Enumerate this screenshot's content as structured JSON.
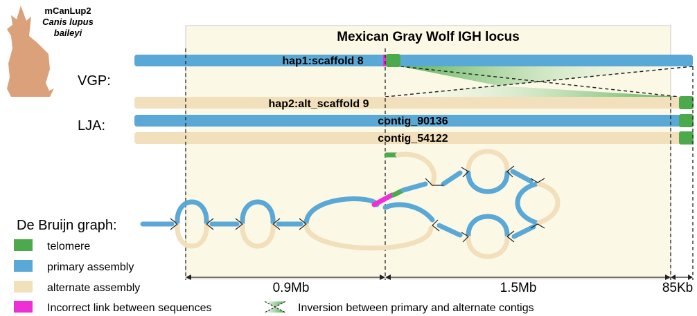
{
  "species": {
    "code": "mCanLup2",
    "genus_species": "Canis lupus",
    "subspecies": "baileyi"
  },
  "title": "Mexican Gray Wolf IGH locus",
  "tracks": {
    "vgp_label": "VGP:",
    "lja_label": "LJA:",
    "hap1": "hap1:scaffold 8",
    "hap2": "hap2:alt_scaffold 9",
    "contig1": "contig_90136",
    "contig2": "contig_54122"
  },
  "graph_label": "De Bruijn graph:",
  "scale": {
    "seg1": "0.9Mb",
    "seg2": "1.5Mb",
    "seg3": "85Kb"
  },
  "legend": {
    "telomere": "telomere",
    "primary": "primary assembly",
    "alternate": "alternate assembly",
    "incorrect": "Incorrect link between sequences",
    "inversion": "Inversion between primary and alternate contigs"
  },
  "colors": {
    "primary": "#5aa8d6",
    "alternate": "#f2dfbb",
    "telomere": "#4caa4c",
    "incorrect": "#ee2fd6",
    "locus_bg": "#fbf8e6",
    "wolf": "#dba17a"
  }
}
